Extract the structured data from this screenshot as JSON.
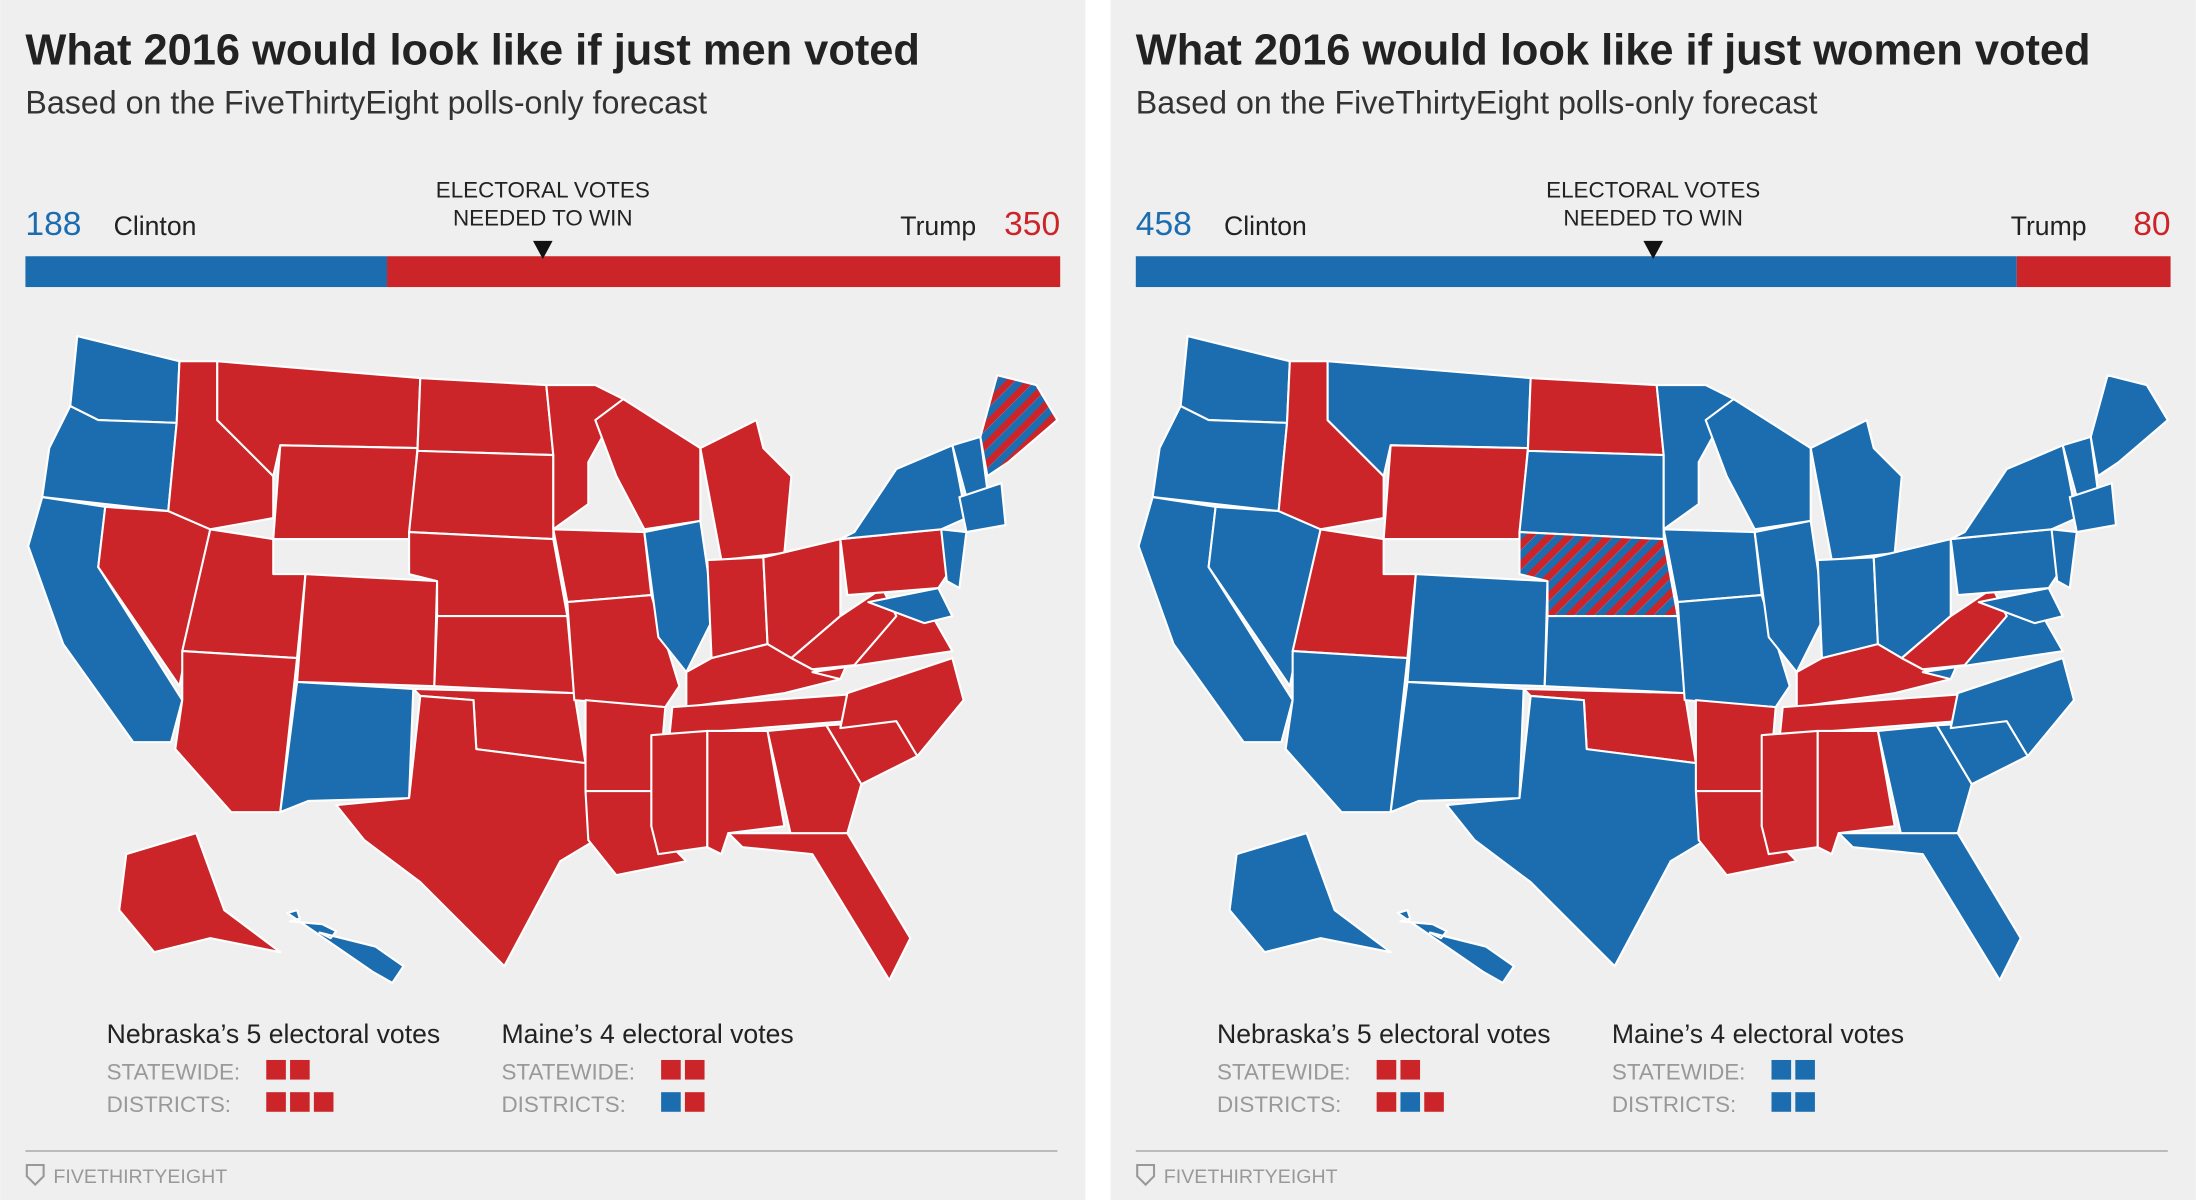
{
  "panels": [
    {
      "title": "What 2016 would look like if just men voted",
      "subtitle": "Based on the FiveThirtyEight polls-only forecast",
      "bar": {
        "needed_label": [
          "ELECTORAL VOTES",
          "NEEDED TO WIN"
        ],
        "left": {
          "name": "Clinton",
          "votes": 188,
          "color": "#1b6db0"
        },
        "right": {
          "name": "Trump",
          "votes": 350,
          "color": "#cc2529"
        }
      },
      "state_colors": [
        [
          "#1b6db0"
        ],
        [
          "#1b6db0"
        ],
        [
          "#1b6db0"
        ],
        [
          "#cc2529"
        ],
        [
          "#cc2529"
        ],
        [
          "#cc2529"
        ],
        [
          "#cc2529"
        ],
        [
          "#cc2529"
        ],
        [
          "#cc2529"
        ],
        [
          "#cc2529"
        ],
        [
          "#1b6db0"
        ],
        [
          "#cc2529"
        ],
        [
          "#cc2529"
        ],
        [
          "#cc2529"
        ],
        [
          "#cc2529"
        ],
        [
          "#cc2529"
        ],
        [
          "#cc2529"
        ],
        [
          "#cc2529"
        ],
        [
          "#cc2529"
        ],
        [
          "#cc2529"
        ],
        [
          "#cc2529"
        ],
        [
          "#cc2529"
        ],
        [
          "#cc2529"
        ],
        [
          "#1b6db0"
        ],
        [
          "#cc2529"
        ],
        [
          "#cc2529"
        ],
        [
          "#cc2529"
        ],
        [
          "#cc2529"
        ],
        [
          "#cc2529"
        ],
        [
          "#cc2529"
        ],
        [
          "#cc2529"
        ],
        [
          "#cc2529"
        ],
        [
          "#cc2529"
        ],
        [
          "#cc2529"
        ],
        [
          "#cc2529"
        ],
        [
          "#cc2529"
        ],
        [
          "#cc2529"
        ],
        [
          "#cc2529"
        ],
        [
          "#1b6db0"
        ],
        [
          "#1b6db0"
        ],
        [
          "#1b6db0"
        ],
        [
          "#1b6db0"
        ],
        [
          "#1b6db0"
        ],
        [
          "#cc2529",
          "#1b6db0"
        ],
        [
          "#cc2529"
        ],
        [
          "#1b6db0"
        ]
      ],
      "legend": [
        {
          "title": "Nebraska’s 5 electoral votes",
          "rows": [
            {
              "label": "STATEWIDE:",
              "squares": [
                "#cc2529",
                "#cc2529"
              ]
            },
            {
              "label": "DISTRICTS:",
              "squares": [
                "#cc2529",
                "#cc2529",
                "#cc2529"
              ]
            }
          ]
        },
        {
          "title": "Maine’s 4 electoral votes",
          "rows": [
            {
              "label": "STATEWIDE:",
              "squares": [
                "#cc2529",
                "#cc2529"
              ]
            },
            {
              "label": "DISTRICTS:",
              "squares": [
                "#1b6db0",
                "#cc2529"
              ]
            }
          ]
        }
      ],
      "footer": "FIVETHIRTYEIGHT"
    },
    {
      "title": "What 2016 would look like if just women voted",
      "subtitle": "Based on the FiveThirtyEight polls-only forecast",
      "bar": {
        "needed_label": [
          "ELECTORAL VOTES",
          "NEEDED TO WIN"
        ],
        "left": {
          "name": "Clinton",
          "votes": 458,
          "color": "#1b6db0"
        },
        "right": {
          "name": "Trump",
          "votes": 80,
          "color": "#cc2529"
        }
      },
      "state_colors": [
        [
          "#1b6db0"
        ],
        [
          "#1b6db0"
        ],
        [
          "#1b6db0"
        ],
        [
          "#1b6db0"
        ],
        [
          "#cc2529"
        ],
        [
          "#1b6db0"
        ],
        [
          "#cc2529"
        ],
        [
          "#cc2529"
        ],
        [
          "#1b6db0"
        ],
        [
          "#1b6db0"
        ],
        [
          "#1b6db0"
        ],
        [
          "#cc2529"
        ],
        [
          "#1b6db0"
        ],
        [
          "#cc2529",
          "#1b6db0"
        ],
        [
          "#1b6db0"
        ],
        [
          "#cc2529"
        ],
        [
          "#1b6db0"
        ],
        [
          "#1b6db0"
        ],
        [
          "#1b6db0"
        ],
        [
          "#1b6db0"
        ],
        [
          "#cc2529"
        ],
        [
          "#cc2529"
        ],
        [
          "#1b6db0"
        ],
        [
          "#1b6db0"
        ],
        [
          "#1b6db0"
        ],
        [
          "#1b6db0"
        ],
        [
          "#1b6db0"
        ],
        [
          "#cc2529"
        ],
        [
          "#cc2529"
        ],
        [
          "#cc2529"
        ],
        [
          "#cc2529"
        ],
        [
          "#1b6db0"
        ],
        [
          "#1b6db0"
        ],
        [
          "#1b6db0"
        ],
        [
          "#1b6db0"
        ],
        [
          "#1b6db0"
        ],
        [
          "#cc2529"
        ],
        [
          "#1b6db0"
        ],
        [
          "#1b6db0"
        ],
        [
          "#1b6db0"
        ],
        [
          "#1b6db0"
        ],
        [
          "#1b6db0"
        ],
        [
          "#1b6db0"
        ],
        [
          "#1b6db0"
        ],
        [
          "#1b6db0"
        ],
        [
          "#1b6db0"
        ]
      ],
      "legend": [
        {
          "title": "Nebraska’s 5 electoral votes",
          "rows": [
            {
              "label": "STATEWIDE:",
              "squares": [
                "#cc2529",
                "#cc2529"
              ]
            },
            {
              "label": "DISTRICTS:",
              "squares": [
                "#cc2529",
                "#1b6db0",
                "#cc2529"
              ]
            }
          ]
        },
        {
          "title": "Maine’s 4 electoral votes",
          "rows": [
            {
              "label": "STATEWIDE:",
              "squares": [
                "#1b6db0",
                "#1b6db0"
              ]
            },
            {
              "label": "DISTRICTS:",
              "squares": [
                "#1b6db0",
                "#1b6db0"
              ]
            }
          ]
        }
      ],
      "footer": "FIVETHIRTYEIGHT"
    }
  ]
}
